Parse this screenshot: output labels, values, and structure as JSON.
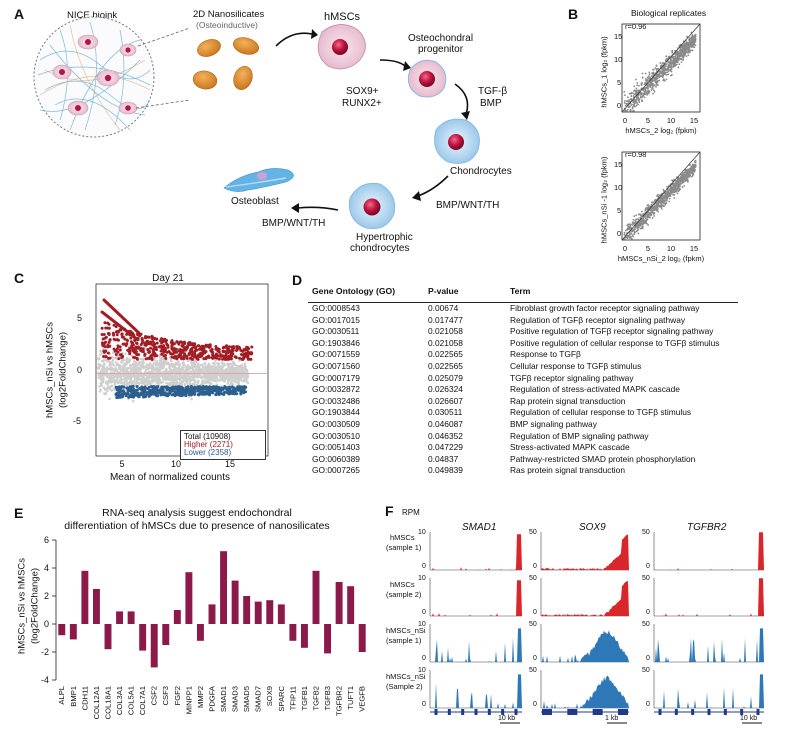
{
  "panels": {
    "a": "A",
    "b": "B",
    "c": "C",
    "d": "D",
    "e": "E",
    "f": "F"
  },
  "colors": {
    "red": "#a21d24",
    "blue": "#2a5f8e",
    "bar": "#8b1a4a",
    "grey": "#c7c7c7",
    "trackRed": "#d9262b",
    "trackBlue": "#2e78b7",
    "navy": "#1f3a8a"
  },
  "panelA": {
    "bioink": "NICE bioink",
    "nanosilicates": "2D Nanosilicates",
    "nanosilicates_sub": "(Osteoinductive)",
    "hmscs": "hMSCs",
    "progenitor_line1": "Osteochondral",
    "progenitor_line2": "progenitor",
    "sox9": "SOX9+",
    "runx2": "RUNX2+",
    "tgfb": "TGF-β",
    "bmp": "BMP",
    "chondrocytes": "Chondrocytes",
    "bmpwnt_right": "BMP/WNT/TH",
    "bmpwnt_left": "BMP/WNT/TH",
    "hypertrophic_line1": "Hypertrophic",
    "hypertrophic_line2": "chondrocytes",
    "osteoblast": "Osteoblast"
  },
  "panelB": {
    "title": "Biological replicates",
    "plot1": {
      "r": "r=0.96",
      "xlabel": "hMSCs_2 log₂ (fpkm)",
      "ylabel": "hMSCs_1 log₂ (fpkm)"
    },
    "plot2": {
      "r": "r=0.98",
      "xlabel": "hMSCs_nSi_2 log₂ (fpkm)",
      "ylabel": "hMSCs_nSi -1 log₂ (fpkm)"
    },
    "ticks": [
      "0",
      "5",
      "10",
      "15"
    ]
  },
  "panelC": {
    "title": "Day 21",
    "ylabel1": "hMSCs_nSi vs hMSCs",
    "ylabel2": "(log2FoldChange)",
    "xlabel": "Mean of normalized counts",
    "xticks": [
      "5",
      "10",
      "15"
    ],
    "yticks": [
      "5",
      "0",
      "-5"
    ],
    "legend_total": "Total (10908)",
    "legend_higher": "Higher (2271)",
    "legend_lower": "Lower (2358)"
  },
  "panelD": {
    "headers": [
      "Gene Ontology (GO)",
      "P-value",
      "Term"
    ],
    "rows": [
      [
        "GO:0008543",
        "0.00674",
        "Fibroblast growth factor receptor signaling pathway"
      ],
      [
        "GO:0017015",
        "0.017477",
        "Regulation of TGFβ receptor signaling pathway"
      ],
      [
        "GO:0030511",
        "0.021058",
        "Positive regulation of TGFβ receptor signaling pathway"
      ],
      [
        "GO:1903846",
        "0.021058",
        "Positive regulation of cellular response to TGFβ stimulus"
      ],
      [
        "GO:0071559",
        "0.022565",
        "Response to TGFβ"
      ],
      [
        "GO:0071560",
        "0.022565",
        "Cellular response to TGFβ stimulus"
      ],
      [
        "GO:0007179",
        "0.025079",
        "TGFβ receptor signaling pathway"
      ],
      [
        "GO:0032872",
        "0.026324",
        "Regulation of stress-activated MAPK cascade"
      ],
      [
        "GO:0032486",
        "0.026607",
        "Rap protein signal transduction"
      ],
      [
        "GO:1903844",
        "0.030511",
        "Regulation of cellular response to TGFβ stimulus"
      ],
      [
        "GO:0030509",
        "0.046087",
        "BMP signaling pathway"
      ],
      [
        "GO:0030510",
        "0.046352",
        "Regulation of BMP signaling pathway"
      ],
      [
        "GO:0051403",
        "0.047229",
        "Stress-activated MAPK cascade"
      ],
      [
        "GO:0060389",
        "0.04837",
        "Pathway-restricted SMAD protein phosphorylation"
      ],
      [
        "GO:0007265",
        "0.049839",
        "Ras protein signal transduction"
      ]
    ]
  },
  "chart_data": {
    "type": "bar",
    "title_line1": "RNA-seq analysis suggest endochondral",
    "title_line2": "differentiation of hMSCs due to presence of nanosilicates",
    "ylabel_line1": "hMSCs_nSi vs hMSCs",
    "ylabel_line2": "(log2FoldChange)",
    "ylim": [
      -4,
      6
    ],
    "yticks": [
      "-4",
      "-2",
      "0",
      "2",
      "4",
      "6"
    ],
    "categories": [
      "ALPL",
      "BMP1",
      "CDH11",
      "COL12A1",
      "COL18A1",
      "COL3A1",
      "COL5A1",
      "COL7A1",
      "CSF2",
      "CSF3",
      "FGF2",
      "MINPP1",
      "MMP2",
      "PDGFA",
      "SMAD1",
      "SMAD3",
      "SMAD5",
      "SMAD7",
      "SOX9",
      "SPARC",
      "TFIP11",
      "TGFB1",
      "TGFB2",
      "TGFB3",
      "TGFBR2",
      "TUFT1",
      "VEGFB"
    ],
    "values": [
      -0.8,
      -1.1,
      3.8,
      2.5,
      -1.8,
      0.9,
      0.9,
      -1.9,
      -3.1,
      -1.5,
      1.0,
      3.7,
      -1.2,
      1.4,
      5.2,
      3.1,
      2.0,
      1.6,
      1.7,
      1.4,
      -1.2,
      -1.7,
      3.8,
      -2.1,
      3.0,
      2.7,
      -2.0
    ]
  },
  "panelF": {
    "rpm": "RPM",
    "genes": [
      "SMAD1",
      "SOX9",
      "TGFBR2"
    ],
    "rows": [
      {
        "line1": "hMSCs",
        "line2": "(sample 1)",
        "scale": [
          "10",
          "50",
          "50"
        ]
      },
      {
        "line1": "hMSCs",
        "line2": "(sample 2)",
        "scale": [
          "10",
          "50",
          "50"
        ]
      },
      {
        "line1": "hMSCs_nSi",
        "line2": "(sample 1)",
        "scale": [
          "10",
          "50",
          "50"
        ]
      },
      {
        "line1": "hMSCs_nSi",
        "line2": "(Sample 2)",
        "scale": [
          "10",
          "50",
          "50"
        ]
      }
    ],
    "zero": "0",
    "scalebars": [
      "10 kb",
      "1 kb",
      "10 kb"
    ]
  }
}
